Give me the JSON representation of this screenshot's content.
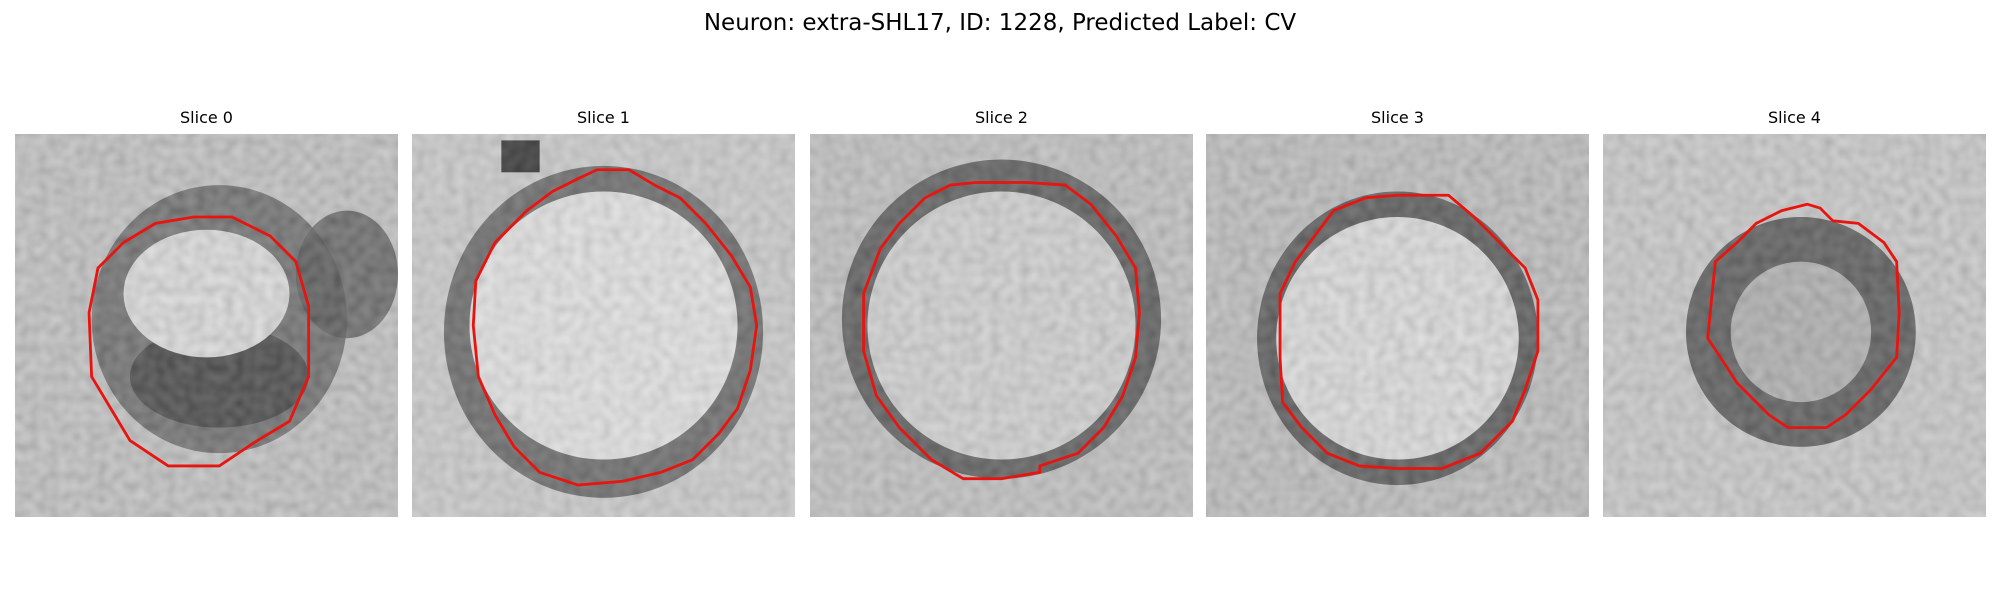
{
  "figure": {
    "title": "Neuron: extra-SHL17, ID: 1228, Predicted Label: CV",
    "contour_color": "#e8140f"
  },
  "panels": [
    {
      "title": "Slice 0"
    },
    {
      "title": "Slice 1"
    },
    {
      "title": "Slice 2"
    },
    {
      "title": "Slice 3"
    },
    {
      "title": "Slice 4"
    }
  ]
}
